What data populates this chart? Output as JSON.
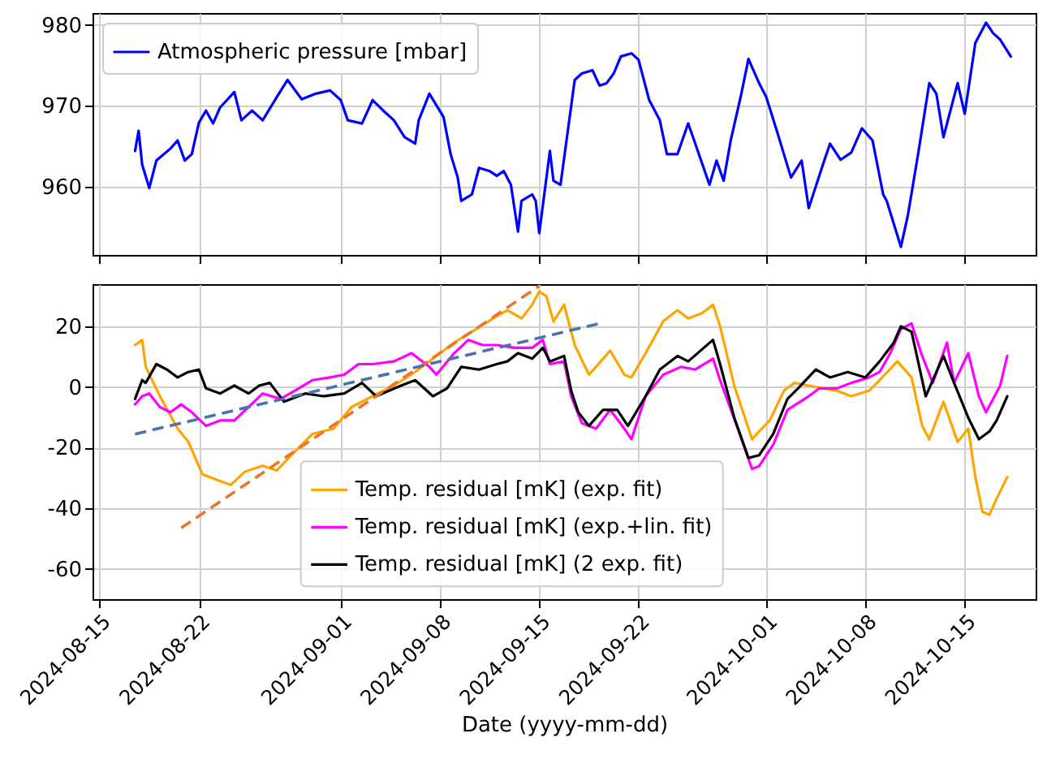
{
  "chart_data": [
    {
      "type": "line",
      "xlim": [
        "2024-08-14T12:00",
        "2024-10-20T00:00"
      ],
      "xticks": [
        "2024-08-15",
        "2024-08-22",
        "2024-09-01",
        "2024-09-08",
        "2024-09-15",
        "2024-09-22",
        "2024-10-01",
        "2024-10-08",
        "2024-10-15"
      ],
      "ylim": [
        951.5,
        981.5
      ],
      "yticks": [
        960,
        970,
        980
      ],
      "grid": true,
      "legend": "top left",
      "tick_labels": "y",
      "series": [
        {
          "name": "Atmospheric pressure [mbar]",
          "color": "#0000ff",
          "x": [
            "2024-08-17T12:00",
            "2024-08-17T18:00",
            "2024-08-18T00:00",
            "2024-08-18T12:00",
            "2024-08-19T00:00",
            "2024-08-20T00:00",
            "2024-08-20T12:00",
            "2024-08-21T00:00",
            "2024-08-21T12:00",
            "2024-08-22T00:00",
            "2024-08-22T12:00",
            "2024-08-23T00:00",
            "2024-08-23T12:00",
            "2024-08-24T12:00",
            "2024-08-25T00:00",
            "2024-08-25T18:00",
            "2024-08-26T12:00",
            "2024-08-27T12:00",
            "2024-08-28T06:00",
            "2024-08-29T06:00",
            "2024-08-30T06:00",
            "2024-08-31T06:00",
            "2024-09-01T00:00",
            "2024-09-01T12:00",
            "2024-09-02T12:00",
            "2024-09-03T06:00",
            "2024-09-04T00:00",
            "2024-09-04T18:00",
            "2024-09-05T12:00",
            "2024-09-06T06:00",
            "2024-09-06T12:00",
            "2024-09-07T06:00",
            "2024-09-08T06:00",
            "2024-09-08T18:00",
            "2024-09-09T06:00",
            "2024-09-09T12:00",
            "2024-09-10T06:00",
            "2024-09-10T18:00",
            "2024-09-11T12:00",
            "2024-09-12T00:00",
            "2024-09-12T12:00",
            "2024-09-13T00:00",
            "2024-09-13T12:00",
            "2024-09-13T18:00",
            "2024-09-14T12:00",
            "2024-09-14T18:00",
            "2024-09-15T00:00",
            "2024-09-15T18:00",
            "2024-09-16T00:00",
            "2024-09-16T12:00",
            "2024-09-17T12:00",
            "2024-09-18T00:00",
            "2024-09-18T18:00",
            "2024-09-19T06:00",
            "2024-09-19T18:00",
            "2024-09-20T06:00",
            "2024-09-20T18:00",
            "2024-09-21T12:00",
            "2024-09-22T00:00",
            "2024-09-22T18:00",
            "2024-09-23T12:00",
            "2024-09-24T00:00",
            "2024-09-24T18:00",
            "2024-09-25T12:00",
            "2024-09-26T00:00",
            "2024-09-27T00:00",
            "2024-09-27T12:00",
            "2024-09-28T00:00",
            "2024-09-28T12:00",
            "2024-09-29T06:00",
            "2024-09-29T18:00",
            "2024-09-30T12:00",
            "2024-10-01T00:00",
            "2024-10-01T18:00",
            "2024-10-02T18:00",
            "2024-10-03T12:00",
            "2024-10-04T00:00",
            "2024-10-05T00:00",
            "2024-10-05T12:00",
            "2024-10-06T06:00",
            "2024-10-07T00:00",
            "2024-10-07T18:00",
            "2024-10-08T12:00",
            "2024-10-09T06:00",
            "2024-10-09T12:00",
            "2024-10-10T12:00",
            "2024-10-11T00:00",
            "2024-10-11T18:00",
            "2024-10-12T12:00",
            "2024-10-13T00:00",
            "2024-10-13T12:00",
            "2024-10-14T12:00",
            "2024-10-15T00:00",
            "2024-10-15T18:00",
            "2024-10-16T12:00",
            "2024-10-17T00:00",
            "2024-10-17T12:00",
            "2024-10-18T06:00"
          ],
          "values": [
            964.4,
            966.9,
            962.7,
            959.8,
            963.2,
            964.7,
            965.7,
            963.2,
            964,
            967.9,
            969.4,
            967.8,
            969.8,
            971.7,
            968.2,
            969.4,
            968.2,
            971.1,
            973.2,
            970.8,
            971.5,
            971.9,
            970.7,
            968.2,
            967.8,
            970.7,
            969.4,
            968.2,
            966.1,
            965.3,
            968.2,
            971.5,
            968.6,
            964,
            961.1,
            958.2,
            959,
            962.3,
            961.9,
            961.3,
            961.9,
            960.2,
            954.4,
            958.2,
            959,
            958.2,
            954.2,
            964.4,
            960.7,
            960.2,
            973.2,
            974,
            974.4,
            972.5,
            972.8,
            974,
            976.1,
            976.5,
            975.7,
            970.7,
            968.2,
            964,
            964,
            967.8,
            965.3,
            960.2,
            963.2,
            960.7,
            965.7,
            971.5,
            975.8,
            972.8,
            971.1,
            966.9,
            961.1,
            963.2,
            957.3,
            962.7,
            965.3,
            963.3,
            964.2,
            967.2,
            965.7,
            959,
            958.2,
            952.5,
            956.5,
            964.4,
            972.8,
            971.5,
            966.1,
            972.8,
            969,
            977.8,
            980.3,
            979,
            978.2,
            976.1
          ]
        }
      ]
    },
    {
      "type": "line",
      "xlabel": "Date (yyyy-mm-dd)",
      "xlim": [
        "2024-08-14T12:00",
        "2024-10-20T00:00"
      ],
      "xticks": [
        "2024-08-15",
        "2024-08-22",
        "2024-09-01",
        "2024-09-08",
        "2024-09-15",
        "2024-09-22",
        "2024-10-01",
        "2024-10-08",
        "2024-10-15"
      ],
      "ylim": [
        -70,
        34
      ],
      "yticks": [
        -60,
        -40,
        -20,
        0,
        20
      ],
      "grid": true,
      "legend": "bottom",
      "series": [
        {
          "name": "Temp. residual [mK] (exp. fit)",
          "color": "#ffa500",
          "x": [
            "2024-08-17T12:00",
            "2024-08-18T00:00",
            "2024-08-18T06:00",
            "2024-08-19T06:00",
            "2024-08-20T12:00",
            "2024-08-21T06:00",
            "2024-08-22T06:00",
            "2024-08-23T06:00",
            "2024-08-24T06:00",
            "2024-08-25T06:00",
            "2024-08-26T12:00",
            "2024-08-27T12:00",
            "2024-08-28T12:00",
            "2024-08-30T00:00",
            "2024-08-31T12:00",
            "2024-09-01T18:00",
            "2024-09-03T06:00",
            "2024-09-04T18:00",
            "2024-09-06T06:00",
            "2024-09-07T12:00",
            "2024-09-09T00:00",
            "2024-09-10T06:00",
            "2024-09-11T18:00",
            "2024-09-12T18:00",
            "2024-09-13T18:00",
            "2024-09-14T12:00",
            "2024-09-15T00:00",
            "2024-09-15T12:00",
            "2024-09-16T00:00",
            "2024-09-16T18:00",
            "2024-09-17T12:00",
            "2024-09-18T12:00",
            "2024-09-19T00:00",
            "2024-09-20T00:00",
            "2024-09-21T00:00",
            "2024-09-21T12:00",
            "2024-09-22T12:00",
            "2024-09-23T18:00",
            "2024-09-24T18:00",
            "2024-09-25T12:00",
            "2024-09-26T12:00",
            "2024-09-27T06:00",
            "2024-09-27T18:00",
            "2024-09-28T18:00",
            "2024-09-30T00:00",
            "2024-09-30T12:00",
            "2024-10-01T06:00",
            "2024-10-02T06:00",
            "2024-10-03T00:00",
            "2024-10-04T00:00",
            "2024-10-05T00:00",
            "2024-10-06T00:00",
            "2024-10-07T00:00",
            "2024-10-08T06:00",
            "2024-10-09T00:00",
            "2024-10-10T06:00",
            "2024-10-11T06:00",
            "2024-10-12T00:00",
            "2024-10-12T12:00",
            "2024-10-13T12:00",
            "2024-10-14T12:00",
            "2024-10-15T06:00",
            "2024-10-15T18:00",
            "2024-10-16T06:00",
            "2024-10-16T18:00",
            "2024-10-17T06:00",
            "2024-10-18T00:00"
          ],
          "values": [
            13.9,
            15.6,
            6.7,
            -3,
            -13.7,
            -18,
            -28.8,
            -30.6,
            -32.3,
            -27.9,
            -26,
            -27.5,
            -22.5,
            -15.5,
            -13.7,
            -6.6,
            -3,
            0.5,
            5,
            9.4,
            14.7,
            18.3,
            22.7,
            25.4,
            22.7,
            27.2,
            31.6,
            30,
            21.7,
            27.2,
            13.9,
            4.1,
            6.7,
            12.1,
            4.1,
            3.2,
            11.2,
            21.8,
            25.4,
            22.7,
            24.5,
            27.2,
            20.1,
            0.5,
            -17.2,
            -14.6,
            -11,
            -1.2,
            1.4,
            0.5,
            -0.4,
            -1.2,
            -3,
            -1.2,
            2.3,
            8.5,
            3.2,
            -12.8,
            -17.2,
            -4.8,
            -18.1,
            -13.7,
            -29.7,
            -41.2,
            -42.1,
            -36.8,
            -29.7
          ]
        },
        {
          "name": "Temp. residual [mK] (exp.+lin. fit)",
          "color": "#ff00ff",
          "x": [
            "2024-08-17T12:00",
            "2024-08-18T00:00",
            "2024-08-18T12:00",
            "2024-08-19T06:00",
            "2024-08-20T00:00",
            "2024-08-20T18:00",
            "2024-08-21T12:00",
            "2024-08-22T12:00",
            "2024-08-23T12:00",
            "2024-08-24T12:00",
            "2024-08-25T12:00",
            "2024-08-26T12:00",
            "2024-08-27T18:00",
            "2024-08-28T18:00",
            "2024-08-30T00:00",
            "2024-08-31T06:00",
            "2024-09-01T06:00",
            "2024-09-02T06:00",
            "2024-09-03T06:00",
            "2024-09-04T18:00",
            "2024-09-06T00:00",
            "2024-09-07T06:00",
            "2024-09-07T18:00",
            "2024-09-09T00:00",
            "2024-09-10T00:00",
            "2024-09-11T00:00",
            "2024-09-12T00:00",
            "2024-09-13T06:00",
            "2024-09-14T12:00",
            "2024-09-15T06:00",
            "2024-09-15T18:00",
            "2024-09-16T18:00",
            "2024-09-17T06:00",
            "2024-09-18T00:00",
            "2024-09-19T00:00",
            "2024-09-20T00:00",
            "2024-09-21T00:00",
            "2024-09-21T12:00",
            "2024-09-22T12:00",
            "2024-09-23T18:00",
            "2024-09-25T00:00",
            "2024-09-26T00:00",
            "2024-09-27T06:00",
            "2024-09-27T18:00",
            "2024-09-29T00:00",
            "2024-09-30T00:00",
            "2024-09-30T12:00",
            "2024-10-01T12:00",
            "2024-10-02T12:00",
            "2024-10-04T00:00",
            "2024-10-04T18:00",
            "2024-10-06T00:00",
            "2024-10-07T00:00",
            "2024-10-08T06:00",
            "2024-10-09T00:00",
            "2024-10-09T18:00",
            "2024-10-10T12:00",
            "2024-10-11T06:00",
            "2024-10-12T00:00",
            "2024-10-12T18:00",
            "2024-10-13T18:00",
            "2024-10-14T06:00",
            "2024-10-15T06:00",
            "2024-10-16T00:00",
            "2024-10-16T12:00",
            "2024-10-17T00:00",
            "2024-10-17T12:00",
            "2024-10-18T00:00"
          ],
          "values": [
            -5.7,
            -3,
            -2.1,
            -6.6,
            -8.3,
            -5.7,
            -8.3,
            -12.8,
            -11,
            -11,
            -6.6,
            -2.1,
            -3.9,
            -1.2,
            2.3,
            3.2,
            4.1,
            7.6,
            7.6,
            8.5,
            11.2,
            6.7,
            4.1,
            11.2,
            15.6,
            13.9,
            13.9,
            13,
            13,
            15.6,
            7.6,
            8.5,
            -3,
            -11.9,
            -13.7,
            -7.5,
            -13.7,
            -17.2,
            -3,
            4.1,
            6.7,
            5.8,
            9.4,
            2.3,
            -13.7,
            -27,
            -26.1,
            -19,
            -7.5,
            -3,
            -0.4,
            -0.4,
            1.4,
            3.2,
            5,
            11.2,
            19.2,
            21,
            10.3,
            1.4,
            14.7,
            1.4,
            11.2,
            -3,
            -8.3,
            -3.9,
            0.5,
            10.3
          ]
        },
        {
          "name": "Temp. residual [mK] (2 exp. fit)",
          "color": "#000000",
          "x": [
            "2024-08-17T12:00",
            "2024-08-18T00:00",
            "2024-08-18T06:00",
            "2024-08-19T00:00",
            "2024-08-19T18:00",
            "2024-08-20T12:00",
            "2024-08-21T06:00",
            "2024-08-22T00:00",
            "2024-08-22T12:00",
            "2024-08-23T12:00",
            "2024-08-24T12:00",
            "2024-08-25T12:00",
            "2024-08-26T06:00",
            "2024-08-27T00:00",
            "2024-08-28T00:00",
            "2024-08-29T12:00",
            "2024-08-30T18:00",
            "2024-09-01T06:00",
            "2024-09-02T12:00",
            "2024-09-03T12:00",
            "2024-09-05T06:00",
            "2024-09-06T06:00",
            "2024-09-07T12:00",
            "2024-09-08T12:00",
            "2024-09-09T12:00",
            "2024-09-10T18:00",
            "2024-09-12T00:00",
            "2024-09-12T18:00",
            "2024-09-13T12:00",
            "2024-09-14T12:00",
            "2024-09-15T06:00",
            "2024-09-15T18:00",
            "2024-09-16T18:00",
            "2024-09-17T06:00",
            "2024-09-17T18:00",
            "2024-09-18T12:00",
            "2024-09-19T12:00",
            "2024-09-20T12:00",
            "2024-09-21T06:00",
            "2024-09-22T12:00",
            "2024-09-23T12:00",
            "2024-09-24T18:00",
            "2024-09-25T12:00",
            "2024-09-27T06:00",
            "2024-09-27T18:00",
            "2024-09-28T18:00",
            "2024-09-29T18:00",
            "2024-09-30T12:00",
            "2024-10-01T12:00",
            "2024-10-02T12:00",
            "2024-10-03T06:00",
            "2024-10-04T12:00",
            "2024-10-05T12:00",
            "2024-10-06T18:00",
            "2024-10-08T00:00",
            "2024-10-09T00:00",
            "2024-10-10T00:00",
            "2024-10-10T12:00",
            "2024-10-11T06:00",
            "2024-10-12T06:00",
            "2024-10-13T12:00",
            "2024-10-14T06:00",
            "2024-10-15T06:00",
            "2024-10-16T00:00",
            "2024-10-16T18:00",
            "2024-10-17T06:00",
            "2024-10-18T00:00"
          ],
          "values": [
            -3.9,
            2.3,
            1.4,
            7.6,
            5.8,
            3.2,
            5,
            5.8,
            -0.4,
            -2.1,
            0.5,
            -2.1,
            0.5,
            1.4,
            -4.8,
            -2.1,
            -3,
            -2.1,
            1.4,
            -3,
            0.5,
            2.3,
            -3,
            -0.4,
            6.7,
            5.8,
            7.6,
            8.5,
            11.2,
            9.4,
            13,
            8.5,
            10.3,
            -1.2,
            -8.3,
            -12.8,
            -7.5,
            -7.5,
            -12.8,
            -3,
            5.8,
            10.3,
            8.5,
            15.6,
            7.6,
            -10.1,
            -23.4,
            -22.5,
            -15.4,
            -3.9,
            -0.4,
            5.8,
            3.2,
            5,
            3.2,
            8.5,
            14.7,
            20.1,
            18.3,
            -3,
            10.3,
            1.4,
            -10.1,
            -17.2,
            -14.6,
            -11,
            -3
          ]
        },
        {
          "type": "line",
          "color": "#e8772e",
          "line_style": "dashed",
          "x": [
            "2024-08-20T18:00",
            "2024-09-15T00:00"
          ],
          "values": [
            -46.5,
            33.4
          ]
        },
        {
          "type": "line",
          "color": "#4c72b0",
          "line_style": "dashed",
          "x": [
            "2024-08-17T12:00",
            "2024-09-19T06:00"
          ],
          "values": [
            -15.5,
            21
          ]
        }
      ]
    }
  ]
}
